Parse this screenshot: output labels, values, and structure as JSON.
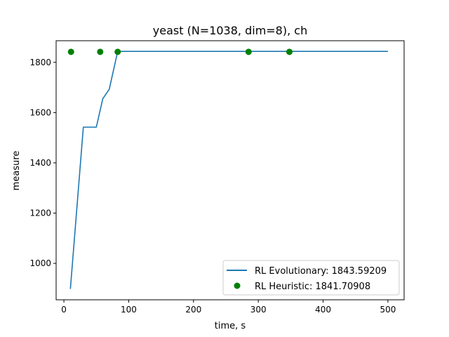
{
  "chart_data": {
    "type": "line",
    "title": "yeast (N=1038, dim=8), ch",
    "xlabel": "time, s",
    "ylabel": "measure",
    "xlim": [
      -12,
      525
    ],
    "ylim": [
      855,
      1886
    ],
    "xticks": [
      0,
      100,
      200,
      300,
      400,
      500
    ],
    "yticks": [
      1000,
      1200,
      1400,
      1600,
      1800
    ],
    "xtick_labels": [
      "0",
      "100",
      "200",
      "300",
      "400",
      "500"
    ],
    "ytick_labels": [
      "1000",
      "1200",
      "1400",
      "1600",
      "1800"
    ],
    "grid": false,
    "legend_position": "lower-right",
    "series": [
      {
        "name": "RL Evolutionary: 1843.59209",
        "kind": "line",
        "color": "#1f77b4",
        "x": [
          10,
          30,
          50,
          60,
          70,
          83,
          500
        ],
        "y": [
          898,
          1542,
          1542,
          1655,
          1693,
          1843.59,
          1843.59
        ]
      },
      {
        "name": "RL Heuristic: 1841.70908",
        "kind": "scatter",
        "color": "#008000",
        "x": [
          11,
          56,
          83,
          285,
          348
        ],
        "y": [
          1841.71,
          1841.71,
          1841.71,
          1841.71,
          1841.71
        ]
      }
    ]
  }
}
